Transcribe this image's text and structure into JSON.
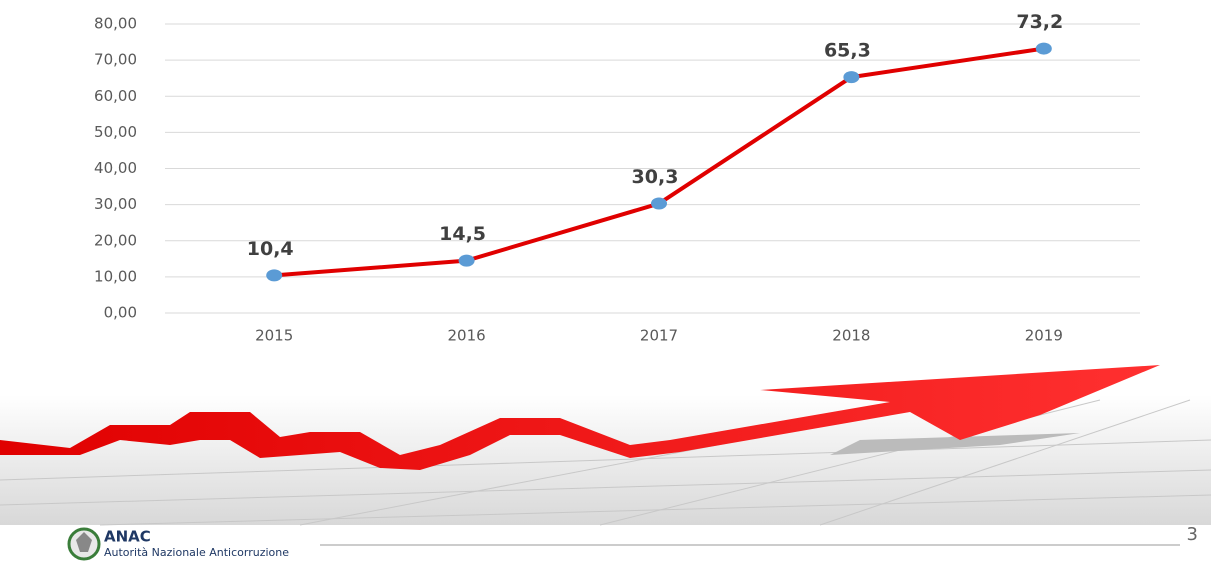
{
  "chart_data": {
    "type": "line",
    "categories": [
      "2015",
      "2016",
      "2017",
      "2018",
      "2019"
    ],
    "values": [
      10.4,
      14.5,
      30.3,
      65.3,
      73.2
    ],
    "value_labels": [
      "10,4",
      "14,5",
      "30,3",
      "65,3",
      "73,2"
    ],
    "color": "#e00000",
    "marker_color": "#5b9bd5",
    "ylim": [
      0,
      80
    ],
    "yticks": [
      {
        "value": 0,
        "label": "0,00"
      },
      {
        "value": 10,
        "label": "10,00"
      },
      {
        "value": 20,
        "label": "20,00"
      },
      {
        "value": 30,
        "label": "30,00"
      },
      {
        "value": 40,
        "label": "40,00"
      },
      {
        "value": 50,
        "label": "50,00"
      },
      {
        "value": 60,
        "label": "60,00"
      },
      {
        "value": 70,
        "label": "70,00"
      },
      {
        "value": 80,
        "label": "80,00"
      }
    ],
    "grid": true
  },
  "footer": {
    "logo_title": "ANAC",
    "logo_subtitle": "Autorità Nazionale Anticorruzione",
    "page_number": "3"
  }
}
